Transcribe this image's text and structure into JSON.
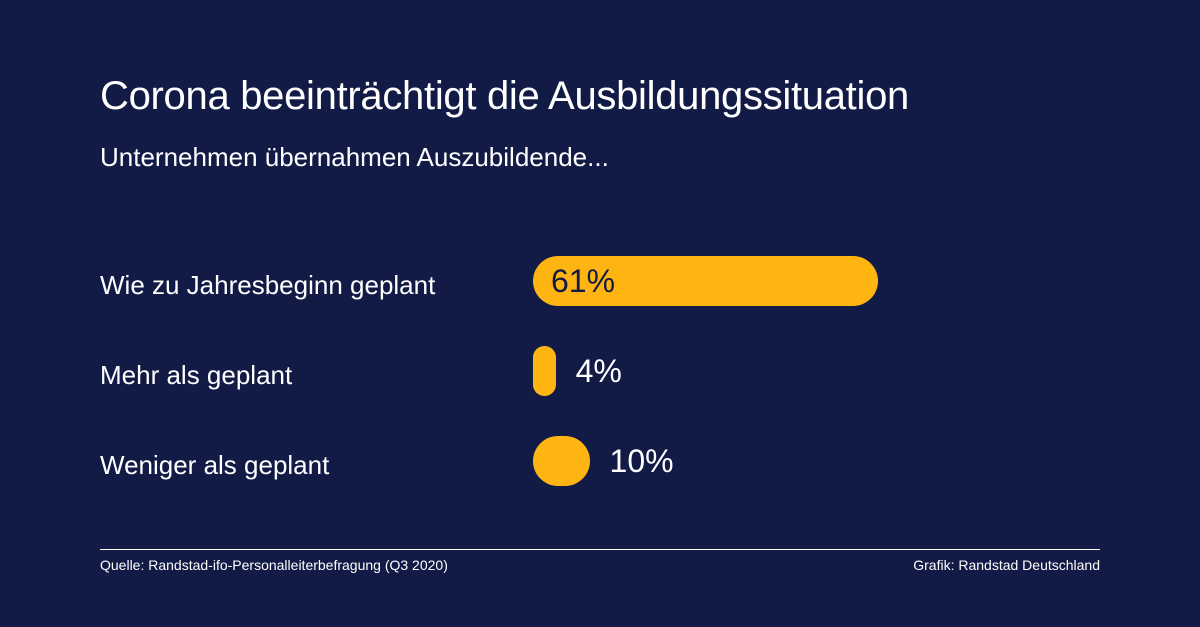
{
  "colors": {
    "background": "#121a46",
    "bar": "#ffb511",
    "text": "#ffffff"
  },
  "chart_data": {
    "type": "bar",
    "orientation": "horizontal",
    "title": "Corona beeinträchtigt die Ausbildungssituation",
    "subtitle": "Unternehmen übernahmen Auszubildende...",
    "categories": [
      "Wie zu Jahresbeginn geplant",
      "Mehr als geplant",
      "Weniger als geplant"
    ],
    "values": [
      61,
      4,
      10
    ],
    "value_labels": [
      "61%",
      "4%",
      "10%"
    ],
    "unit": "%",
    "grid": false,
    "legend": "none"
  },
  "footer": {
    "source": "Quelle: Randstad-ifo-Personalleiterbefragung (Q3 2020)",
    "credit": "Grafik: Randstad Deutschland"
  }
}
